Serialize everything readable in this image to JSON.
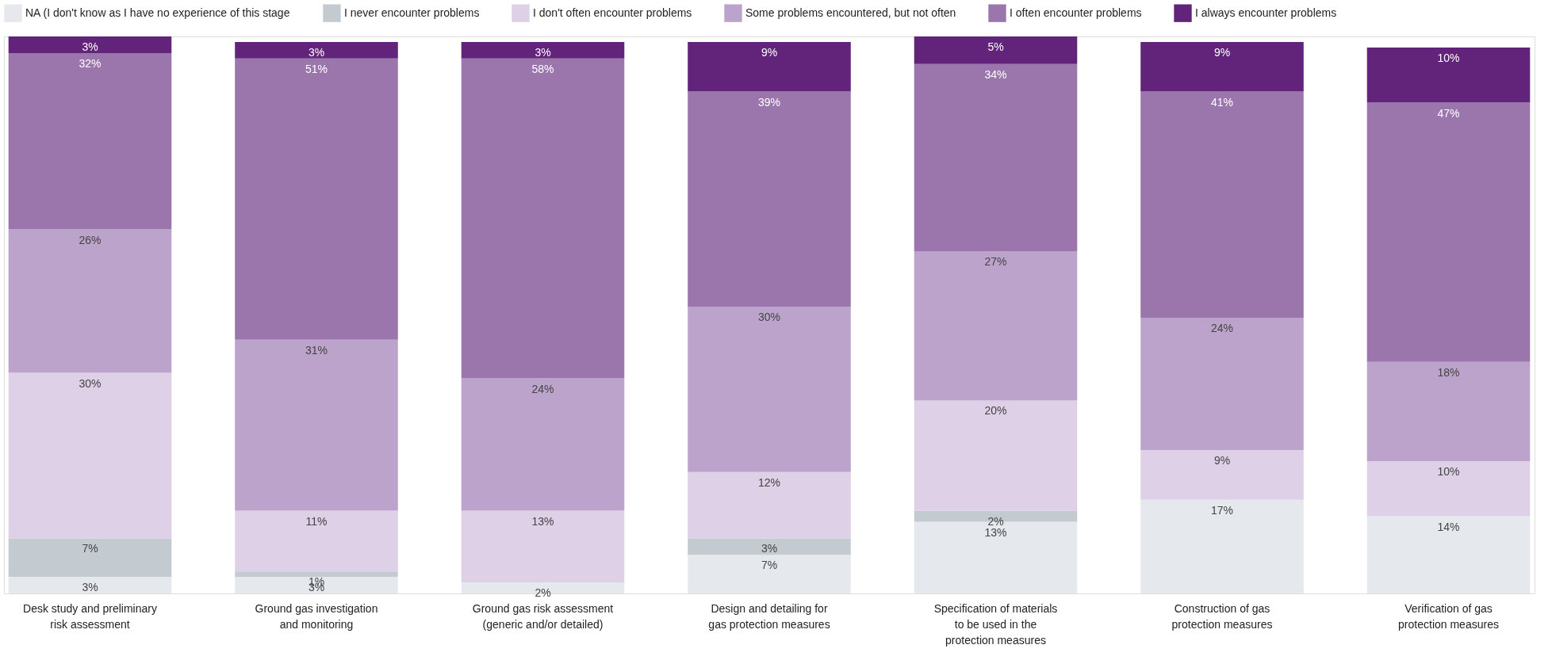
{
  "chart_data": {
    "type": "bar",
    "stacked": true,
    "legend": "top",
    "categories": [
      "Desk study and preliminary risk assessment",
      "Ground gas investigation and monitoring",
      "Ground gas risk assessment (generic and/or detailed)",
      "Design and detailing for gas protection measures",
      "Specification of materials to be used in the protection measures",
      "Construction of gas protection measures",
      "Verification of gas protection measures"
    ],
    "series": [
      {
        "name": "NA (I don't know as I have no experience of this stage",
        "color": "#e5e8ec",
        "values": [
          3,
          3,
          2,
          7,
          13,
          17,
          14
        ],
        "value_labels": [
          "3%",
          "3%",
          "2%",
          "7%",
          "13%",
          "17%",
          "14%"
        ]
      },
      {
        "name": "I never encounter problems",
        "color": "#c3cad0",
        "values": [
          7,
          1,
          null,
          3,
          2,
          null,
          null
        ],
        "value_labels": [
          "7%",
          "1%",
          null,
          "3%",
          "2%",
          null,
          null
        ]
      },
      {
        "name": "I don't often encounter problems",
        "color": "#ded0e6",
        "values": [
          30,
          11,
          13,
          12,
          20,
          9,
          10
        ],
        "value_labels": [
          "30%",
          "11%",
          "13%",
          "12%",
          "20%",
          "9%",
          "10%"
        ]
      },
      {
        "name": "Some problems encountered, but not often",
        "color": "#bca3cb",
        "values": [
          26,
          31,
          24,
          30,
          27,
          24,
          18
        ],
        "value_labels": [
          "26%",
          "31%",
          "24%",
          "30%",
          "27%",
          "24%",
          "18%"
        ]
      },
      {
        "name": "I often encounter problems",
        "color": "#9b76ac",
        "values": [
          32,
          51,
          58,
          39,
          34,
          41,
          47
        ],
        "value_labels": [
          "32%",
          "51%",
          "58%",
          "39%",
          "34%",
          "41%",
          "47%"
        ]
      },
      {
        "name": "I always encounter problems",
        "color": "#62237a",
        "values": [
          3,
          3,
          3,
          9,
          5,
          9,
          10
        ],
        "value_labels": [
          "3%",
          "3%",
          "3%",
          "9%",
          "5%",
          "9%",
          "10%"
        ]
      }
    ]
  }
}
